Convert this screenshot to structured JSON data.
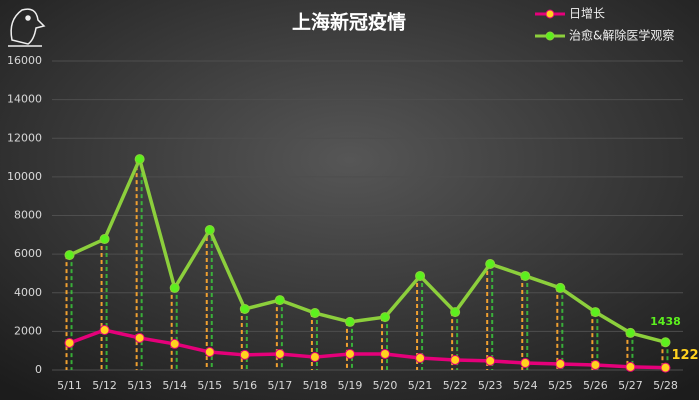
{
  "chart_data": {
    "type": "line",
    "title": "上海新冠疫情",
    "categories": [
      "5/11",
      "5/12",
      "5/13",
      "5/14",
      "5/15",
      "5/16",
      "5/17",
      "5/18",
      "5/19",
      "5/20",
      "5/21",
      "5/22",
      "5/23",
      "5/24",
      "5/25",
      "5/26",
      "5/27",
      "5/28"
    ],
    "series": [
      {
        "name": "日增长",
        "color": "#e5007a",
        "marker_color": "#ffd21f",
        "values": [
          1400,
          2070,
          1660,
          1350,
          930,
          780,
          830,
          670,
          830,
          830,
          620,
          520,
          470,
          360,
          310,
          260,
          160,
          122
        ]
      },
      {
        "name": "治愈&解除医学观察",
        "color": "#8ccf3c",
        "marker_color": "#5cf01e",
        "values": [
          5950,
          6780,
          10920,
          4250,
          7250,
          3160,
          3620,
          2950,
          2490,
          2740,
          4870,
          3000,
          5490,
          4870,
          4250,
          3000,
          1920,
          1438
        ]
      }
    ],
    "ylim": [
      0,
      16000
    ],
    "yticks": [
      0,
      2000,
      4000,
      6000,
      8000,
      10000,
      12000,
      14000,
      16000
    ],
    "grid": true,
    "legend": "top-right"
  }
}
